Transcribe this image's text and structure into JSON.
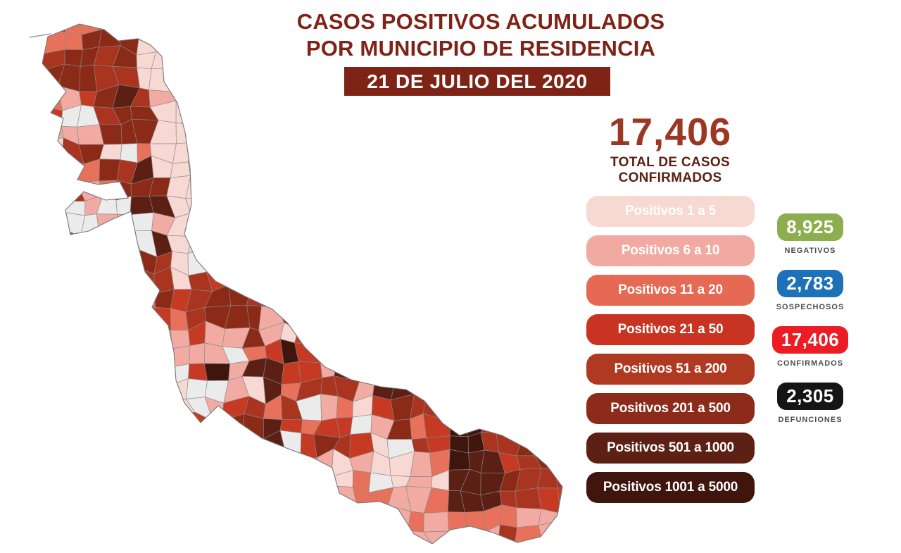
{
  "header": {
    "title_line1": "CASOS POSITIVOS ACUMULADOS",
    "title_line2": "POR MUNICIPIO DE RESIDENCIA",
    "date_banner": "21 DE JULIO DEL 2020",
    "title_color": "#7e2316",
    "banner_bg": "#7e2316"
  },
  "total": {
    "value": "17,406",
    "label_line1": "TOTAL DE CASOS",
    "label_line2": "CONFIRMADOS"
  },
  "legend": {
    "items": [
      {
        "label": "Positivos 1 a 5",
        "color": "#f8d8d2"
      },
      {
        "label": "Positivos 6 a 10",
        "color": "#f0aaa1"
      },
      {
        "label": "Positivos 11 a 20",
        "color": "#e66953"
      },
      {
        "label": "Positivos 21 a 50",
        "color": "#c83421"
      },
      {
        "label": "Positivos 51 a 200",
        "color": "#b03a21"
      },
      {
        "label": "Positivos 201 a 500",
        "color": "#8c2b1a"
      },
      {
        "label": "Positivos 501 a 1000",
        "color": "#5c2014"
      },
      {
        "label": "Positivos 1001 a 5000",
        "color": "#3f150d"
      }
    ]
  },
  "stats": [
    {
      "value": "8,925",
      "label": "NEGATIVOS",
      "color": "#8cae4e"
    },
    {
      "value": "2,783",
      "label": "SOSPECHOSOS",
      "color": "#1d71b8"
    },
    {
      "value": "17,406",
      "label": "CONFIRMADOS",
      "color": "#ed1c24"
    },
    {
      "value": "2,305",
      "label": "DEFUNCIONES",
      "color": "#151515"
    }
  ],
  "map": {
    "region": "veracruz-municipios",
    "palette": [
      "#f7d8d2",
      "#f1aba2",
      "#e8715c",
      "#c63a24",
      "#a93420",
      "#8c2a18",
      "#5c1f14",
      "#40150d"
    ],
    "no_data_color": "#ebebeb",
    "border_color": "#8a8a8a",
    "outline_color": "#777777"
  }
}
